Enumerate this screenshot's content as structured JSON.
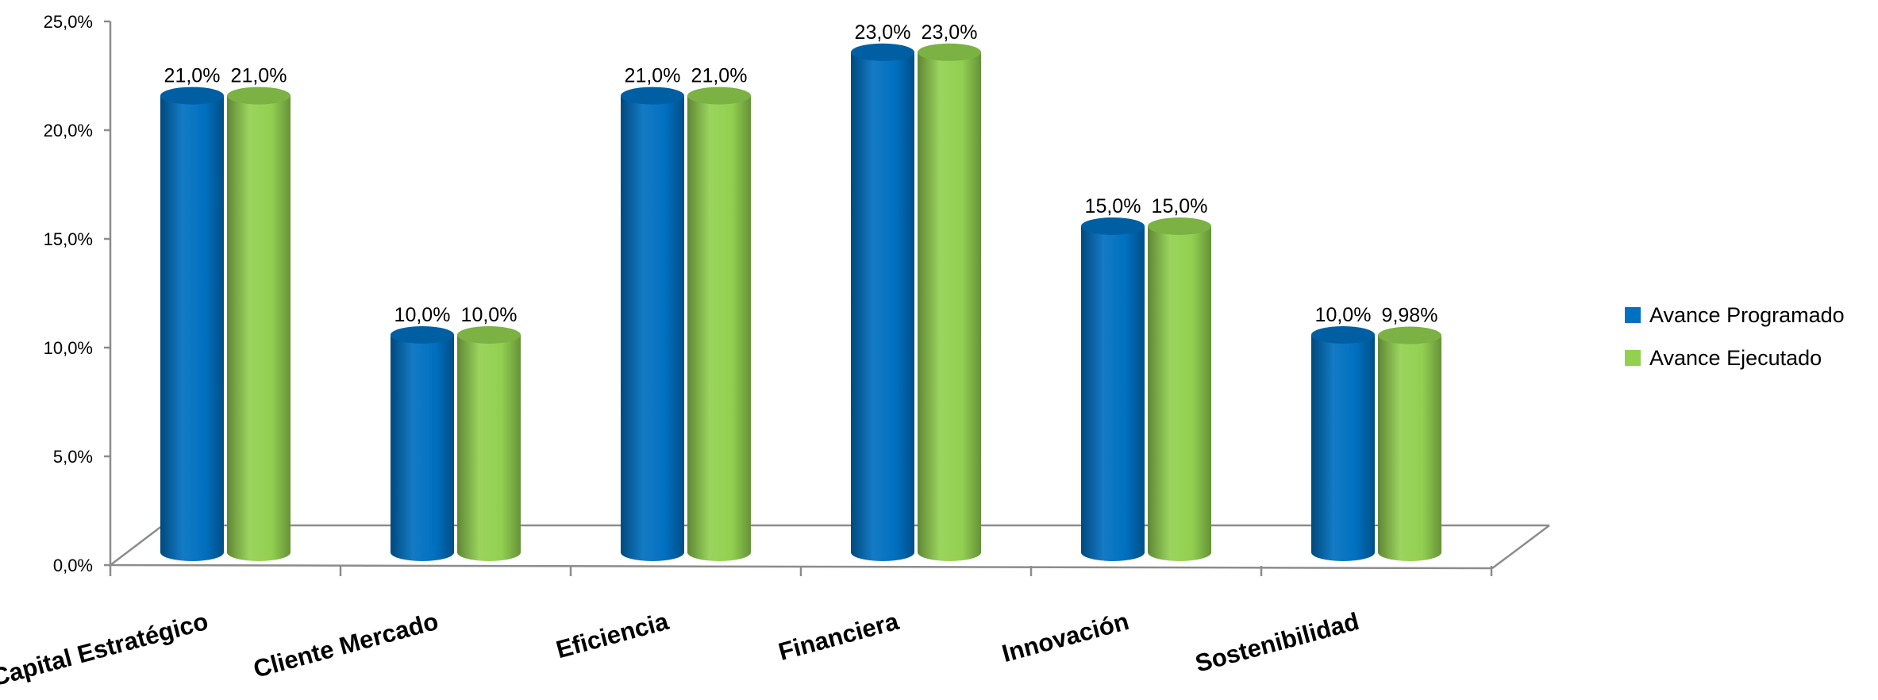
{
  "chart_data": {
    "type": "bar",
    "categories": [
      "Capital Estratégico",
      "Cliente Mercado",
      "Eficiencia",
      "Financiera",
      "Innovación",
      "Sostenibilidad"
    ],
    "series": [
      {
        "name": "Avance Programado",
        "values": [
          21.0,
          10.0,
          21.0,
          23.0,
          15.0,
          10.0
        ],
        "labels": [
          "21,0%",
          "10,0%",
          "21,0%",
          "23,0%",
          "15,0%",
          "10,0%"
        ],
        "color": "#0070C0"
      },
      {
        "name": "Avance Ejecutado",
        "values": [
          21.0,
          10.0,
          21.0,
          23.0,
          15.0,
          9.98
        ],
        "labels": [
          "21,0%",
          "10,0%",
          "21,0%",
          "23,0%",
          "15,0%",
          "9,98%"
        ],
        "color": "#92D050"
      }
    ],
    "ylim": [
      0,
      25
    ],
    "yticks": [
      0,
      5,
      10,
      15,
      20,
      25
    ],
    "ytick_labels": [
      "0,0%",
      "5,0%",
      "10,0%",
      "15,0%",
      "20,0%",
      "25,0%"
    ],
    "title": "",
    "xlabel": "",
    "ylabel": "",
    "grid": false,
    "legend_position": "right",
    "style": "3d-cylinder"
  }
}
